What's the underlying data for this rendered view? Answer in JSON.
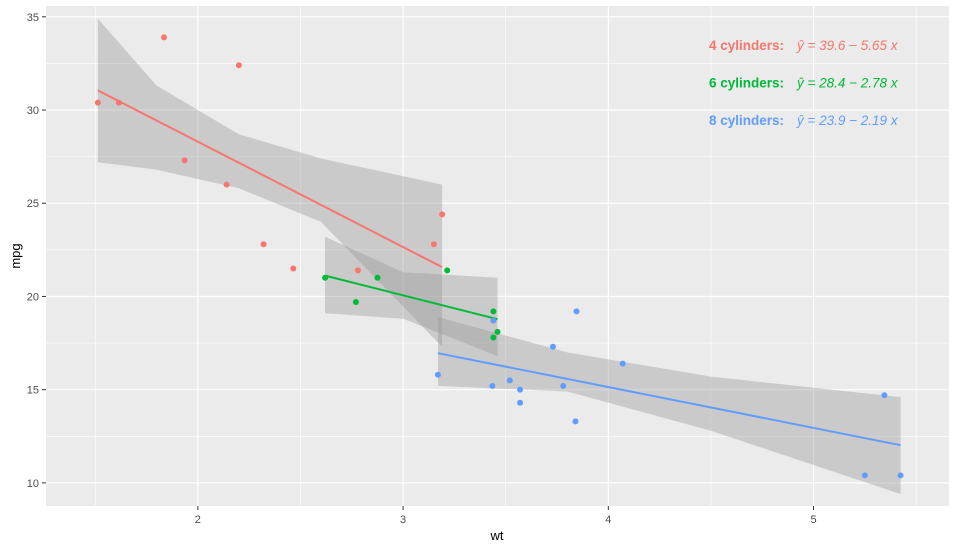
{
  "chart_data": {
    "type": "scatter",
    "title": "",
    "xlabel": "wt",
    "ylabel": "mpg",
    "xlim": [
      1.26,
      5.66
    ],
    "ylim": [
      8.76,
      35.58
    ],
    "x_ticks": [
      2,
      3,
      4,
      5
    ],
    "y_ticks": [
      10,
      15,
      20,
      25,
      30,
      35
    ],
    "grid": true,
    "background": "#ebebeb",
    "series": [
      {
        "name": "4 cylinders",
        "color": "#f8766d",
        "label": "4 cylinders:",
        "equation": "ŷ = 39.6 − 5.65 x",
        "intercept": 39.6,
        "slope": -5.65,
        "x_range": [
          1.513,
          3.19
        ],
        "band": [
          [
            1.513,
            27.2,
            34.9
          ],
          [
            1.8,
            26.8,
            31.3
          ],
          [
            2.2,
            25.8,
            28.7
          ],
          [
            2.6,
            24.0,
            27.4
          ],
          [
            3.19,
            17.3,
            26.0
          ]
        ],
        "points": [
          [
            2.32,
            22.8
          ],
          [
            3.19,
            24.4
          ],
          [
            3.15,
            22.8
          ],
          [
            2.2,
            32.4
          ],
          [
            1.615,
            30.4
          ],
          [
            1.835,
            33.9
          ],
          [
            2.465,
            21.5
          ],
          [
            1.935,
            27.3
          ],
          [
            2.14,
            26.0
          ],
          [
            1.513,
            30.4
          ],
          [
            2.78,
            21.4
          ]
        ]
      },
      {
        "name": "6 cylinders",
        "color": "#00ba38",
        "label": "6 cylinders:",
        "equation": "ŷ = 28.4 − 2.78 x",
        "intercept": 28.4,
        "slope": -2.78,
        "x_range": [
          2.62,
          3.46
        ],
        "band": [
          [
            2.62,
            19.1,
            23.2
          ],
          [
            3.0,
            18.8,
            21.3
          ],
          [
            3.46,
            16.8,
            21.0
          ]
        ],
        "points": [
          [
            2.62,
            21.0
          ],
          [
            2.875,
            21.0
          ],
          [
            3.215,
            21.4
          ],
          [
            3.46,
            18.1
          ],
          [
            3.44,
            19.2
          ],
          [
            3.44,
            17.8
          ],
          [
            2.77,
            19.7
          ]
        ]
      },
      {
        "name": "8 cylinders",
        "color": "#619cff",
        "label": "8 cylinders:",
        "equation": "ŷ = 23.9 − 2.19 x",
        "intercept": 23.9,
        "slope": -2.19,
        "x_range": [
          3.17,
          5.424
        ],
        "band": [
          [
            3.17,
            15.2,
            18.9
          ],
          [
            3.8,
            14.9,
            17.0
          ],
          [
            4.5,
            12.8,
            15.7
          ],
          [
            5.424,
            9.4,
            14.6
          ]
        ],
        "points": [
          [
            3.44,
            18.7
          ],
          [
            3.57,
            14.3
          ],
          [
            4.07,
            16.4
          ],
          [
            3.73,
            17.3
          ],
          [
            3.78,
            15.2
          ],
          [
            5.25,
            10.4
          ],
          [
            5.424,
            10.4
          ],
          [
            5.345,
            14.7
          ],
          [
            3.52,
            15.5
          ],
          [
            3.435,
            15.2
          ],
          [
            3.84,
            13.3
          ],
          [
            3.845,
            19.2
          ],
          [
            3.17,
            15.8
          ],
          [
            3.57,
            15.0
          ]
        ]
      }
    ]
  }
}
